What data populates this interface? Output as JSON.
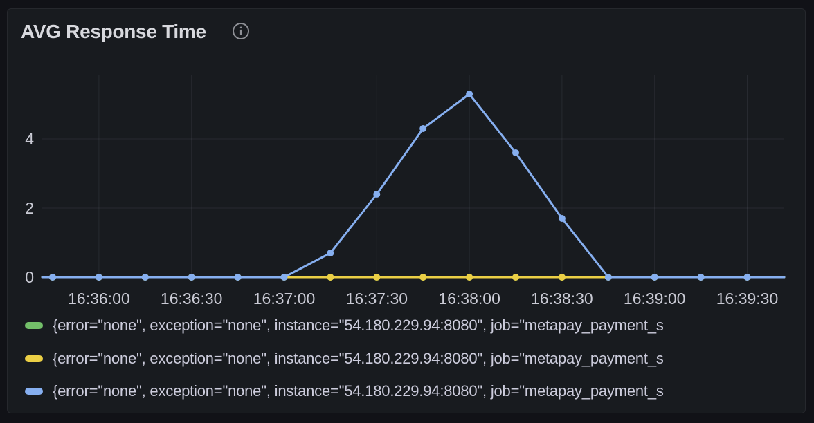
{
  "panel": {
    "title": "AVG Response Time"
  },
  "icons": {
    "info": "info-icon"
  },
  "colors": {
    "panel_background": "#181b1f",
    "page_background": "#111217",
    "grid": "rgba(204,204,220,0.09)",
    "text": "#ccccdc",
    "green": "#73bf69",
    "yellow": "#ebcf45",
    "blue": "#86aff0"
  },
  "chart_data": {
    "type": "line",
    "title": "AVG Response Time",
    "grid": true,
    "legend_position": "bottom",
    "point_markers": true,
    "ylim": [
      0,
      5.8
    ],
    "y_ticks": [
      0,
      2,
      4
    ],
    "y_tick_labels": [
      "0",
      "2",
      "4"
    ],
    "x_tick_labels": [
      "16:36:00",
      "16:36:30",
      "16:37:00",
      "16:37:30",
      "16:38:00",
      "16:38:30",
      "16:39:00",
      "16:39:30"
    ],
    "x_tick_indices": [
      1,
      3,
      5,
      7,
      9,
      11,
      13,
      15
    ],
    "times": [
      "16:35:45",
      "16:36:00",
      "16:36:15",
      "16:36:30",
      "16:36:45",
      "16:37:00",
      "16:37:15",
      "16:37:30",
      "16:37:45",
      "16:38:00",
      "16:38:15",
      "16:38:30",
      "16:38:45",
      "16:39:00",
      "16:39:15",
      "16:39:30"
    ],
    "series": [
      {
        "name": "{error=\"none\", exception=\"none\", instance=\"54.180.229.94:8080\", job=\"metapay_payment_s",
        "color": "#73bf69",
        "values": [
          0,
          0,
          0,
          0,
          0,
          0,
          0,
          0,
          0,
          0,
          0,
          0,
          0,
          0,
          0,
          0
        ]
      },
      {
        "name": "{error=\"none\", exception=\"none\", instance=\"54.180.229.94:8080\", job=\"metapay_payment_s",
        "color": "#ebcf45",
        "values": [
          0,
          0,
          0,
          0,
          0,
          0,
          0,
          0,
          0,
          0,
          0,
          0,
          0,
          0,
          0,
          0
        ]
      },
      {
        "name": "{error=\"none\", exception=\"none\", instance=\"54.180.229.94:8080\", job=\"metapay_payment_s",
        "color": "#86aff0",
        "values": [
          0,
          0,
          0,
          0,
          0,
          0,
          0.7,
          2.4,
          4.3,
          5.3,
          3.6,
          1.7,
          0,
          0,
          0,
          0
        ]
      }
    ]
  },
  "legend": {
    "items": [
      {
        "swatch_color": "#73bf69",
        "label": "{error=\"none\", exception=\"none\", instance=\"54.180.229.94:8080\", job=\"metapay_payment_s"
      },
      {
        "swatch_color": "#ebcf45",
        "label": "{error=\"none\", exception=\"none\", instance=\"54.180.229.94:8080\", job=\"metapay_payment_s"
      },
      {
        "swatch_color": "#86aff0",
        "label": "{error=\"none\", exception=\"none\", instance=\"54.180.229.94:8080\", job=\"metapay_payment_s"
      }
    ]
  }
}
